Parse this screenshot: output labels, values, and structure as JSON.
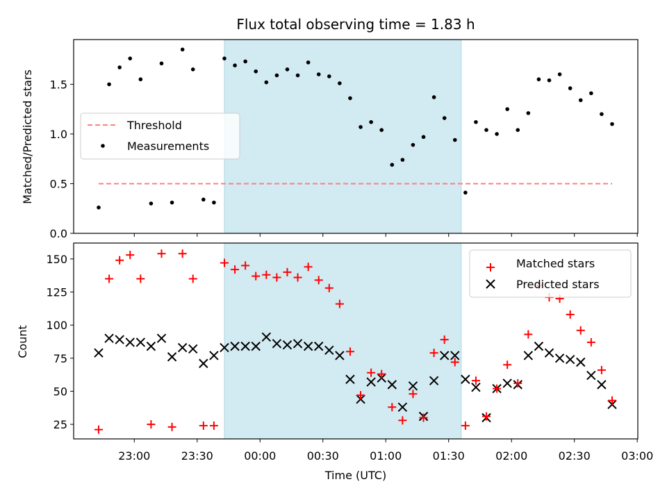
{
  "title": "Flux total observing time = 1.83 h",
  "colors": {
    "measurement": "#000000",
    "threshold": "#ff7f7f",
    "matched": "#ff0000",
    "predicted": "#000000",
    "band": "#add8e6"
  },
  "chart_data": [
    {
      "type": "scatter",
      "ylabel": "Matched/Predicted stars",
      "ylim": [
        0,
        1.95
      ],
      "yticks": [
        0.0,
        0.5,
        1.0,
        1.5
      ],
      "ytick_labels": [
        "0.0",
        "0.5",
        "1.0",
        "1.5"
      ],
      "xlim": [
        "22:30",
        "03:00"
      ],
      "shaded_interval": [
        "23:43",
        "01:36"
      ],
      "legend": {
        "position": "center-left",
        "entries": [
          "Threshold",
          "Measurements"
        ]
      },
      "threshold": {
        "name": "Threshold",
        "value": 0.5,
        "x": [
          "22:43",
          "02:48"
        ]
      },
      "series": [
        {
          "name": "Measurements",
          "x": [
            "22:43",
            "22:48",
            "22:53",
            "22:58",
            "23:03",
            "23:08",
            "23:13",
            "23:18",
            "23:23",
            "23:28",
            "23:33",
            "23:38",
            "23:43",
            "23:48",
            "23:53",
            "23:58",
            "00:03",
            "00:08",
            "00:13",
            "00:18",
            "00:23",
            "00:28",
            "00:33",
            "00:38",
            "00:43",
            "00:48",
            "00:53",
            "00:58",
            "01:03",
            "01:08",
            "01:13",
            "01:18",
            "01:23",
            "01:28",
            "01:33",
            "01:38",
            "01:43",
            "01:48",
            "01:53",
            "01:58",
            "02:03",
            "02:08",
            "02:13",
            "02:18",
            "02:23",
            "02:28",
            "02:33",
            "02:38",
            "02:43",
            "02:48"
          ],
          "y": [
            0.26,
            1.5,
            1.67,
            1.76,
            1.55,
            0.3,
            1.71,
            0.31,
            1.85,
            1.65,
            0.34,
            0.31,
            1.76,
            1.69,
            1.73,
            1.63,
            1.52,
            1.59,
            1.65,
            1.59,
            1.72,
            1.6,
            1.58,
            1.51,
            1.36,
            1.07,
            1.12,
            1.04,
            0.69,
            0.74,
            0.89,
            0.97,
            1.37,
            1.16,
            0.94,
            0.41,
            1.12,
            1.04,
            1.0,
            1.25,
            1.04,
            1.21,
            1.55,
            1.54,
            1.6,
            1.46,
            1.34,
            1.41,
            1.2,
            1.1
          ]
        }
      ]
    },
    {
      "type": "scatter",
      "xlabel": "Time (UTC)",
      "ylabel": "Count",
      "ylim": [
        14,
        162
      ],
      "yticks": [
        25,
        50,
        75,
        100,
        125,
        150
      ],
      "ytick_labels": [
        "25",
        "50",
        "75",
        "100",
        "125",
        "150"
      ],
      "xlim": [
        "22:30",
        "03:00"
      ],
      "xtick_labels": [
        "23:00",
        "23:30",
        "00:00",
        "00:30",
        "01:00",
        "01:30",
        "02:00",
        "02:30",
        "03:00"
      ],
      "shaded_interval": [
        "23:43",
        "01:36"
      ],
      "legend": {
        "position": "upper-right",
        "entries": [
          "Matched stars",
          "Predicted stars"
        ]
      },
      "series": [
        {
          "name": "Matched stars",
          "x": [
            "22:43",
            "22:48",
            "22:53",
            "22:58",
            "23:03",
            "23:08",
            "23:13",
            "23:18",
            "23:23",
            "23:28",
            "23:33",
            "23:38",
            "23:43",
            "23:48",
            "23:53",
            "23:58",
            "00:03",
            "00:08",
            "00:13",
            "00:18",
            "00:23",
            "00:28",
            "00:33",
            "00:38",
            "00:43",
            "00:48",
            "00:53",
            "00:58",
            "01:03",
            "01:08",
            "01:13",
            "01:18",
            "01:23",
            "01:28",
            "01:33",
            "01:38",
            "01:43",
            "01:48",
            "01:53",
            "01:58",
            "02:03",
            "02:08",
            "02:13",
            "02:18",
            "02:23",
            "02:28",
            "02:33",
            "02:38",
            "02:43",
            "02:48"
          ],
          "y": [
            21,
            135,
            149,
            153,
            135,
            25,
            154,
            23,
            154,
            135,
            24,
            24,
            147,
            142,
            145,
            137,
            138,
            136,
            140,
            136,
            144,
            134,
            128,
            116,
            80,
            47,
            64,
            63,
            38,
            28,
            48,
            30,
            79,
            89,
            72,
            24,
            58,
            31,
            52,
            70,
            56,
            93,
            130,
            121,
            120,
            108,
            96,
            87,
            66,
            43
          ]
        },
        {
          "name": "Predicted stars",
          "x": [
            "22:43",
            "22:48",
            "22:53",
            "22:58",
            "23:03",
            "23:08",
            "23:13",
            "23:18",
            "23:23",
            "23:28",
            "23:33",
            "23:38",
            "23:43",
            "23:48",
            "23:53",
            "23:58",
            "00:03",
            "00:08",
            "00:13",
            "00:18",
            "00:23",
            "00:28",
            "00:33",
            "00:38",
            "00:43",
            "00:48",
            "00:53",
            "00:58",
            "01:03",
            "01:08",
            "01:13",
            "01:18",
            "01:23",
            "01:28",
            "01:33",
            "01:38",
            "01:43",
            "01:48",
            "01:53",
            "01:58",
            "02:03",
            "02:08",
            "02:13",
            "02:18",
            "02:23",
            "02:28",
            "02:33",
            "02:38",
            "02:43",
            "02:48"
          ],
          "y": [
            79,
            90,
            89,
            87,
            87,
            84,
            90,
            76,
            83,
            82,
            71,
            77,
            83,
            84,
            84,
            84,
            91,
            86,
            85,
            86,
            84,
            84,
            81,
            77,
            59,
            44,
            57,
            60,
            55,
            38,
            54,
            31,
            58,
            77,
            77,
            59,
            53,
            30,
            52,
            56,
            55,
            77,
            84,
            79,
            75,
            74,
            72,
            62,
            55,
            40
          ]
        }
      ]
    }
  ]
}
